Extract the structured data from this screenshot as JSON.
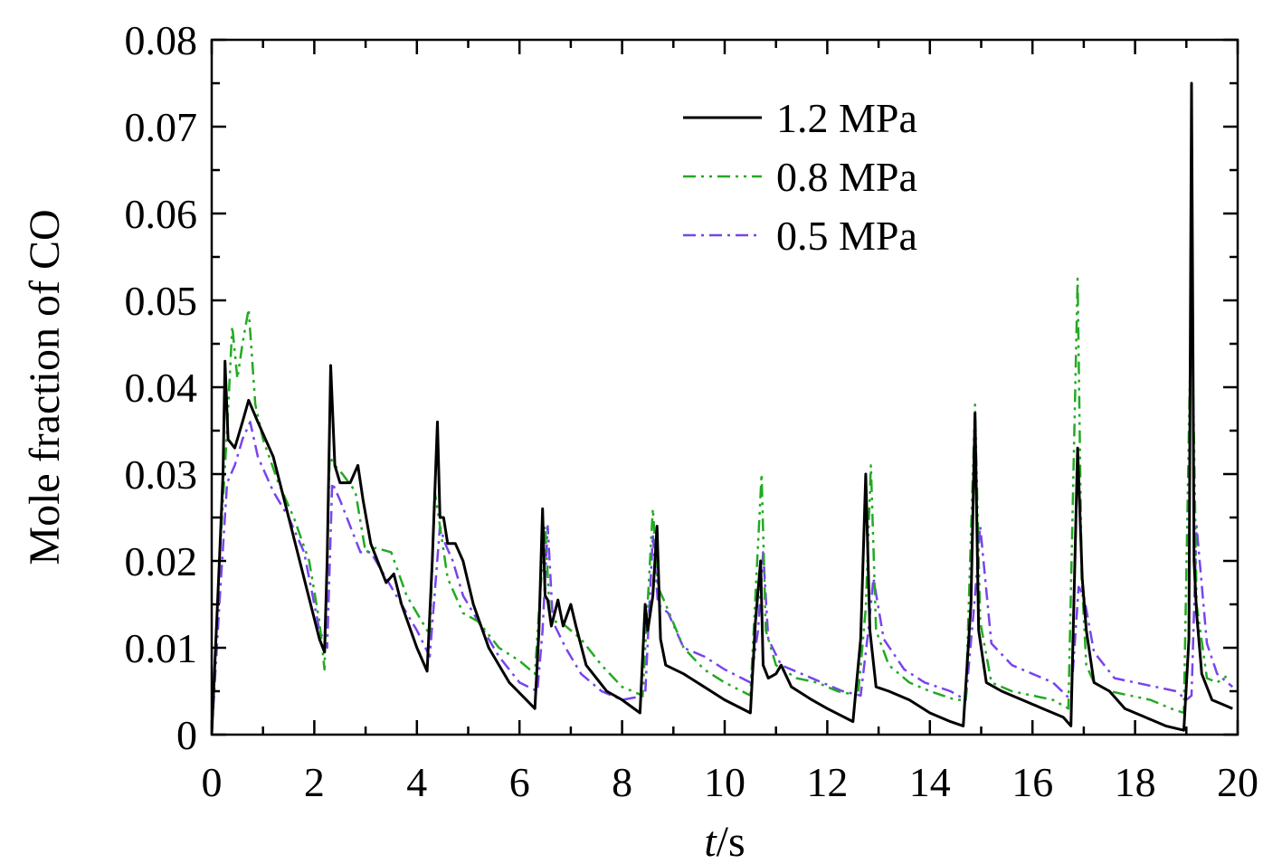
{
  "chart_data": {
    "type": "line",
    "title": "",
    "xlabel": "t/s",
    "xlabel_italic": "t",
    "xlabel_rest": "/s",
    "ylabel": "Mole fraction of CO",
    "xlim": [
      0,
      20
    ],
    "ylim": [
      0,
      0.08
    ],
    "xticks": [
      0,
      2,
      4,
      6,
      8,
      10,
      12,
      14,
      16,
      18,
      20
    ],
    "yticks": [
      0,
      0.01,
      0.02,
      0.03,
      0.04,
      0.05,
      0.06,
      0.07,
      0.08
    ],
    "ytick_labels": [
      "0",
      "0.01",
      "0.02",
      "0.03",
      "0.04",
      "0.05",
      "0.06",
      "0.07",
      "0.08"
    ],
    "xtick_labels": [
      "0",
      "2",
      "4",
      "6",
      "8",
      "10",
      "12",
      "14",
      "16",
      "18",
      "20"
    ],
    "grid": false,
    "legend_position": "top-right",
    "series": [
      {
        "name": "1.2 MPa",
        "color": "#000000",
        "style": "solid",
        "x": [
          0,
          0.15,
          0.22,
          0.26,
          0.32,
          0.45,
          0.6,
          0.72,
          0.9,
          1.2,
          1.5,
          1.8,
          2.1,
          2.2,
          2.25,
          2.32,
          2.4,
          2.5,
          2.7,
          2.85,
          2.95,
          3.1,
          3.3,
          3.4,
          3.55,
          3.7,
          4.0,
          4.2,
          4.3,
          4.4,
          4.45,
          4.52,
          4.6,
          4.75,
          4.9,
          5.1,
          5.4,
          5.8,
          6.3,
          6.38,
          6.45,
          6.5,
          6.55,
          6.62,
          6.75,
          6.85,
          7.0,
          7.1,
          7.3,
          7.7,
          8.0,
          8.35,
          8.45,
          8.5,
          8.6,
          8.68,
          8.75,
          8.85,
          9.2,
          9.6,
          10.0,
          10.5,
          10.6,
          10.7,
          10.75,
          10.85,
          11.0,
          11.1,
          11.3,
          11.7,
          12.0,
          12.5,
          12.65,
          12.75,
          12.83,
          12.95,
          13.2,
          13.6,
          14.0,
          14.4,
          14.65,
          14.8,
          14.88,
          14.95,
          15.1,
          15.4,
          15.8,
          16.2,
          16.6,
          16.75,
          16.88,
          16.97,
          17.05,
          17.2,
          17.5,
          17.8,
          18.2,
          18.6,
          18.95,
          19.05,
          19.1,
          19.15,
          19.2,
          19.3,
          19.5,
          19.7,
          19.9
        ],
        "values": [
          0,
          0.02,
          0.03,
          0.043,
          0.034,
          0.033,
          0.036,
          0.0385,
          0.036,
          0.032,
          0.025,
          0.018,
          0.011,
          0.0095,
          0.02,
          0.0425,
          0.031,
          0.029,
          0.029,
          0.031,
          0.027,
          0.022,
          0.019,
          0.0175,
          0.0185,
          0.015,
          0.01,
          0.0073,
          0.02,
          0.036,
          0.025,
          0.025,
          0.022,
          0.022,
          0.02,
          0.015,
          0.01,
          0.006,
          0.003,
          0.012,
          0.026,
          0.016,
          0.0155,
          0.0125,
          0.0155,
          0.0125,
          0.015,
          0.0125,
          0.008,
          0.005,
          0.004,
          0.0025,
          0.015,
          0.012,
          0.016,
          0.024,
          0.011,
          0.008,
          0.007,
          0.0055,
          0.004,
          0.0025,
          0.013,
          0.02,
          0.008,
          0.0065,
          0.007,
          0.008,
          0.0055,
          0.004,
          0.003,
          0.0015,
          0.011,
          0.03,
          0.012,
          0.0055,
          0.005,
          0.004,
          0.0025,
          0.0015,
          0.001,
          0.015,
          0.037,
          0.012,
          0.006,
          0.005,
          0.004,
          0.003,
          0.002,
          0.001,
          0.033,
          0.018,
          0.012,
          0.006,
          0.005,
          0.003,
          0.002,
          0.001,
          0.0005,
          0.011,
          0.075,
          0.02,
          0.014,
          0.007,
          0.004,
          0.0035,
          0.003
        ]
      },
      {
        "name": "0.8 MPa",
        "color": "#22aa22",
        "style": "dash-dot-dot",
        "x": [
          0,
          0.15,
          0.3,
          0.4,
          0.5,
          0.6,
          0.72,
          0.85,
          1.0,
          1.3,
          1.6,
          1.9,
          2.1,
          2.2,
          2.3,
          2.4,
          2.55,
          2.8,
          3.0,
          3.2,
          3.5,
          3.8,
          4.1,
          4.25,
          4.35,
          4.45,
          4.6,
          4.9,
          5.2,
          5.6,
          6.0,
          6.3,
          6.4,
          6.5,
          6.6,
          6.8,
          7.2,
          7.6,
          8.0,
          8.4,
          8.6,
          8.7,
          8.85,
          9.2,
          9.6,
          10.0,
          10.5,
          10.6,
          10.72,
          10.8,
          11.0,
          11.4,
          11.8,
          12.2,
          12.6,
          12.75,
          12.85,
          12.95,
          13.2,
          13.6,
          14.0,
          14.5,
          14.7,
          14.88,
          14.98,
          15.2,
          15.6,
          16.0,
          16.4,
          16.7,
          16.88,
          16.96,
          17.05,
          17.2,
          17.5,
          17.9,
          18.3,
          18.7,
          18.95,
          19.1,
          19.2,
          19.4,
          19.6,
          19.85
        ],
        "values": [
          0,
          0.02,
          0.035,
          0.047,
          0.041,
          0.045,
          0.049,
          0.038,
          0.034,
          0.029,
          0.025,
          0.02,
          0.013,
          0.0075,
          0.032,
          0.031,
          0.03,
          0.028,
          0.021,
          0.0215,
          0.021,
          0.016,
          0.013,
          0.0115,
          0.028,
          0.024,
          0.018,
          0.014,
          0.013,
          0.01,
          0.0085,
          0.007,
          0.016,
          0.024,
          0.013,
          0.013,
          0.011,
          0.008,
          0.0055,
          0.0045,
          0.026,
          0.017,
          0.015,
          0.01,
          0.0075,
          0.006,
          0.0045,
          0.016,
          0.03,
          0.012,
          0.008,
          0.0065,
          0.006,
          0.005,
          0.0045,
          0.0145,
          0.031,
          0.012,
          0.008,
          0.006,
          0.005,
          0.004,
          0.004,
          0.038,
          0.013,
          0.006,
          0.005,
          0.0045,
          0.004,
          0.003,
          0.0525,
          0.018,
          0.008,
          0.006,
          0.005,
          0.0045,
          0.004,
          0.003,
          0.0025,
          0.052,
          0.015,
          0.0065,
          0.006,
          0.007
        ]
      },
      {
        "name": "0.5 MPa",
        "color": "#7744ee",
        "style": "dash-dot",
        "x": [
          0,
          0.15,
          0.3,
          0.45,
          0.6,
          0.75,
          0.9,
          1.2,
          1.5,
          1.8,
          2.1,
          2.25,
          2.35,
          2.5,
          2.7,
          2.9,
          3.1,
          3.4,
          3.7,
          4.0,
          4.25,
          4.45,
          4.55,
          4.7,
          4.9,
          5.2,
          5.6,
          6.0,
          6.35,
          6.45,
          6.55,
          6.65,
          6.9,
          7.2,
          7.6,
          8.0,
          8.45,
          8.6,
          8.7,
          8.9,
          9.2,
          9.6,
          10.0,
          10.5,
          10.65,
          10.75,
          10.85,
          11.1,
          11.5,
          11.9,
          12.3,
          12.65,
          12.8,
          12.9,
          13.1,
          13.5,
          13.9,
          14.4,
          14.7,
          14.88,
          14.98,
          15.2,
          15.6,
          16.0,
          16.4,
          16.75,
          16.9,
          17.0,
          17.2,
          17.6,
          18.0,
          18.4,
          18.8,
          19.0,
          19.1,
          19.2,
          19.4,
          19.6,
          19.9
        ],
        "values": [
          0,
          0.015,
          0.029,
          0.031,
          0.034,
          0.036,
          0.032,
          0.028,
          0.025,
          0.021,
          0.012,
          0.01,
          0.029,
          0.027,
          0.024,
          0.021,
          0.021,
          0.018,
          0.015,
          0.012,
          0.009,
          0.024,
          0.022,
          0.02,
          0.016,
          0.013,
          0.009,
          0.006,
          0.005,
          0.012,
          0.024,
          0.013,
          0.01,
          0.007,
          0.005,
          0.004,
          0.0045,
          0.023,
          0.015,
          0.014,
          0.01,
          0.009,
          0.0075,
          0.006,
          0.012,
          0.021,
          0.011,
          0.008,
          0.007,
          0.006,
          0.005,
          0.0045,
          0.012,
          0.018,
          0.011,
          0.0075,
          0.006,
          0.005,
          0.004,
          0.016,
          0.024,
          0.0105,
          0.008,
          0.007,
          0.006,
          0.004,
          0.017,
          0.016,
          0.0095,
          0.0065,
          0.006,
          0.0055,
          0.005,
          0.004,
          0.0045,
          0.024,
          0.0105,
          0.007,
          0.0055
        ]
      }
    ]
  }
}
